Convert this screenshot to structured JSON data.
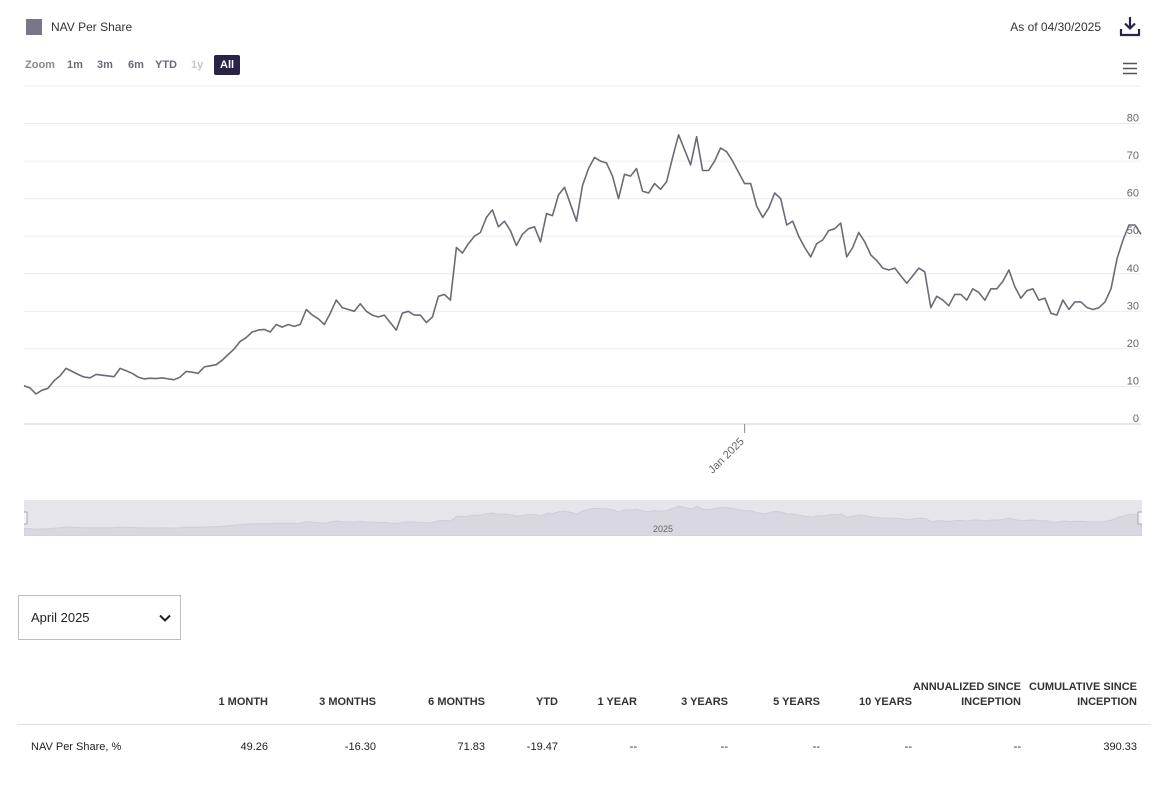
{
  "header": {
    "legend_label": "NAV Per Share",
    "as_of": "As of 04/30/2025"
  },
  "colors": {
    "series": "#6d6a78",
    "legend_swatch": "#7a7587",
    "active_button": "#2b2346",
    "navigator_fill": "#dddbe3"
  },
  "icons": {
    "download": "download-icon",
    "menu": "hamburger-menu-icon",
    "chevron": "chevron-down-icon"
  },
  "zoom": {
    "label": "Zoom",
    "buttons": [
      {
        "label": "1m",
        "state": "normal"
      },
      {
        "label": "3m",
        "state": "normal"
      },
      {
        "label": "6m",
        "state": "normal"
      },
      {
        "label": "YTD",
        "state": "normal"
      },
      {
        "label": "1y",
        "state": "disabled"
      },
      {
        "label": "All",
        "state": "active"
      }
    ]
  },
  "navigator": {
    "label": "2025"
  },
  "chart_data": {
    "type": "line",
    "series": [
      {
        "name": "NAV Per Share",
        "values": [
          10.2,
          9.6,
          8.0,
          9.0,
          9.5,
          11.5,
          12.8,
          14.8,
          14.0,
          13.2,
          12.5,
          12.3,
          13.2,
          13.0,
          12.8,
          12.6,
          14.8,
          14.2,
          13.5,
          12.5,
          12.0,
          12.2,
          12.1,
          12.3,
          12.0,
          11.8,
          12.5,
          14.0,
          13.8,
          13.5,
          15.2,
          15.5,
          15.8,
          17.0,
          18.5,
          20.0,
          22.0,
          23.0,
          24.5,
          25.0,
          25.2,
          24.5,
          26.5,
          25.8,
          26.5,
          26.0,
          26.5,
          30.5,
          29.0,
          28.0,
          26.5,
          29.5,
          33.0,
          31.0,
          30.5,
          30.0,
          32.0,
          30.0,
          29.0,
          28.5,
          29.0,
          27.0,
          25.0,
          29.5,
          30.0,
          29.0,
          29.0,
          27.0,
          28.5,
          34.0,
          34.5,
          33.0,
          47.0,
          45.5,
          48.0,
          50.0,
          51.0,
          55.0,
          57.0,
          52.5,
          54.0,
          51.5,
          47.5,
          50.5,
          52.0,
          52.5,
          48.5,
          56.0,
          55.5,
          61.0,
          63.0,
          58.5,
          54.0,
          63.5,
          68.0,
          71.0,
          70.0,
          69.5,
          66.0,
          60.0,
          66.5,
          66.0,
          68.0,
          62.0,
          61.5,
          64.0,
          62.5,
          64.5,
          71.0,
          77.0,
          73.0,
          69.0,
          76.5,
          67.5,
          67.5,
          70.0,
          73.5,
          72.5,
          70.0,
          67.0,
          64.0,
          64.0,
          58.0,
          55.0,
          57.5,
          61.5,
          60.0,
          53.0,
          54.0,
          50.0,
          47.0,
          44.5,
          48.0,
          49.0,
          51.5,
          52.0,
          53.5,
          44.5,
          47.0,
          51.0,
          48.5,
          45.0,
          43.5,
          41.5,
          41.0,
          41.5,
          39.5,
          37.5,
          39.5,
          41.5,
          40.5,
          31.0,
          34.0,
          33.0,
          31.5,
          34.5,
          34.5,
          33.0,
          36.0,
          35.0,
          33.0,
          36.0,
          36.0,
          38.0,
          41.0,
          36.5,
          33.5,
          35.5,
          36.0,
          33.0,
          33.5,
          29.5,
          29.0,
          33.0,
          30.5,
          32.5,
          32.5,
          31.0,
          30.5,
          31.0,
          32.5,
          36.0,
          44.0,
          49.0,
          53.0,
          53.0,
          50.5
        ]
      }
    ],
    "x_tick_labels": [
      "Jan 2025"
    ],
    "x_tick_index": 120,
    "y_ticks": [
      0,
      10,
      20,
      30,
      40,
      50,
      60,
      70,
      80
    ],
    "ylim": [
      0,
      90
    ],
    "grid": true,
    "title": "",
    "xlabel": "",
    "ylabel": ""
  },
  "period_select": {
    "value": "April 2025"
  },
  "performance_table": {
    "columns": [
      "1 MONTH",
      "3 MONTHS",
      "6 MONTHS",
      "YTD",
      "1 YEAR",
      "3 YEARS",
      "5 YEARS",
      "10 YEARS",
      "ANNUALIZED SINCE INCEPTION",
      "CUMULATIVE SINCE INCEPTION"
    ],
    "rows": [
      {
        "label": "NAV Per Share, %",
        "values": [
          "49.26",
          "-16.30",
          "71.83",
          "-19.47",
          "--",
          "--",
          "--",
          "--",
          "--",
          "390.33"
        ]
      }
    ]
  }
}
